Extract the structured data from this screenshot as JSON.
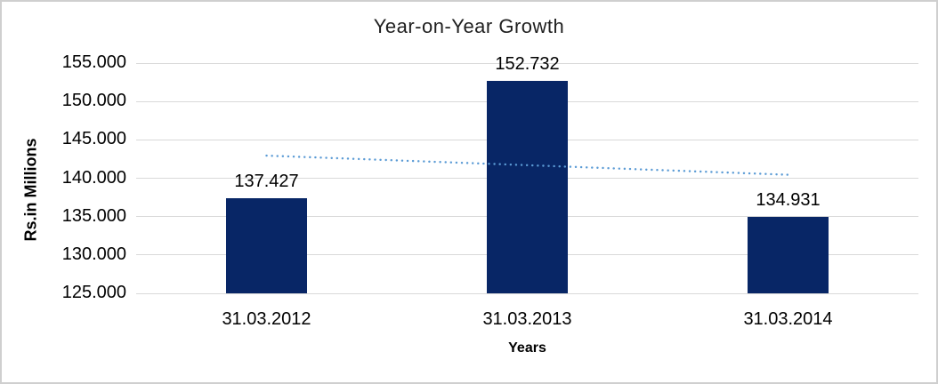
{
  "chart_data": {
    "type": "bar",
    "title": "Year-on-Year Growth",
    "xlabel": "Years",
    "ylabel": "Rs.in Millions",
    "categories": [
      "31.03.2012",
      "31.03.2013",
      "31.03.2014"
    ],
    "values": [
      137.427,
      152.732,
      134.931
    ],
    "value_labels": [
      "137.427",
      "152.732",
      "134.931"
    ],
    "ylim": [
      125,
      155
    ],
    "ytick_labels": [
      "125.000",
      "130.000",
      "135.000",
      "140.000",
      "145.000",
      "150.000",
      "155.000"
    ],
    "grid": true,
    "legend": "none",
    "trendline": {
      "type": "linear",
      "style": "dotted",
      "start_value": 142.945,
      "end_value": 140.449
    },
    "colors": {
      "bar": "#082666",
      "trendline": "#5b9bd5",
      "gridline": "#d9d9d9",
      "text": "#000000",
      "border": "#cfcfcf",
      "background": "#ffffff"
    }
  }
}
